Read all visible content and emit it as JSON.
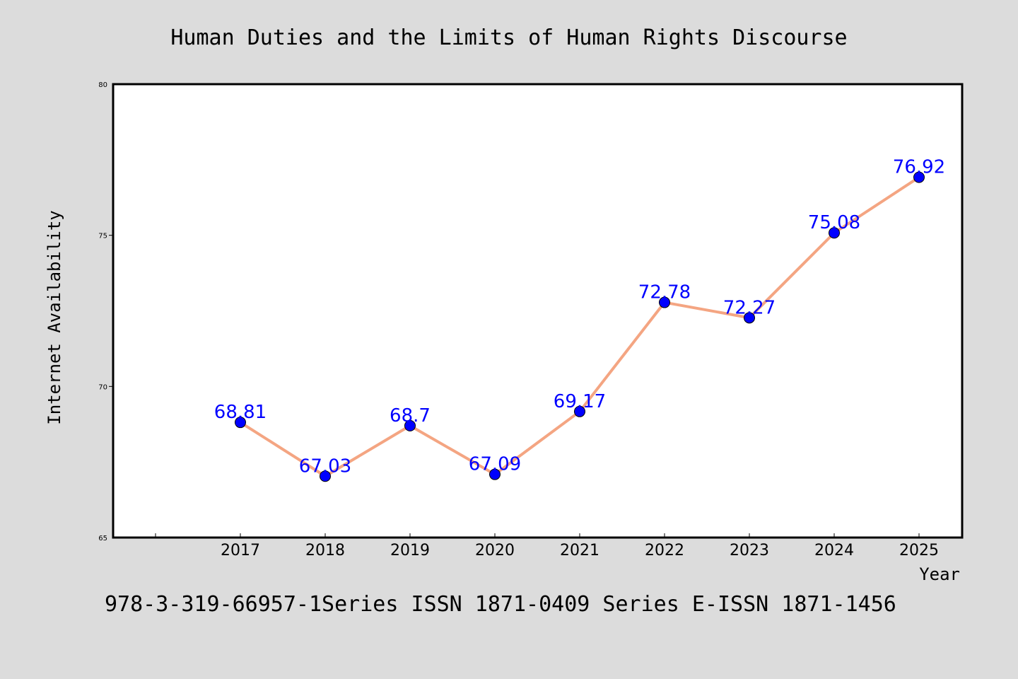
{
  "chart_data": {
    "type": "line",
    "title": "Human Duties and the Limits of Human Rights Discourse",
    "xlabel": "Year",
    "ylabel": "Internet Availability",
    "categories": [
      "2017",
      "2018",
      "2019",
      "2020",
      "2021",
      "2022",
      "2023",
      "2024",
      "2025"
    ],
    "series": [
      {
        "values": [
          68.81,
          67.03,
          68.7,
          67.09,
          69.17,
          72.78,
          72.27,
          75.08,
          76.92
        ],
        "labels": [
          "68.81",
          "67.03",
          "68.7",
          "67.09",
          "69.17",
          "72.78",
          "72.27",
          "75.08",
          "76.92"
        ],
        "line_color": "#f4a582",
        "marker_color": "#0000ff"
      }
    ],
    "ylim": [
      65,
      80
    ],
    "yticks": [
      "65",
      "70",
      "75",
      "80"
    ],
    "grid": false,
    "legend": "none",
    "footer": "978-3-319-66957-1Series ISSN 1871-0409 Series E-ISSN 1871-1456"
  }
}
